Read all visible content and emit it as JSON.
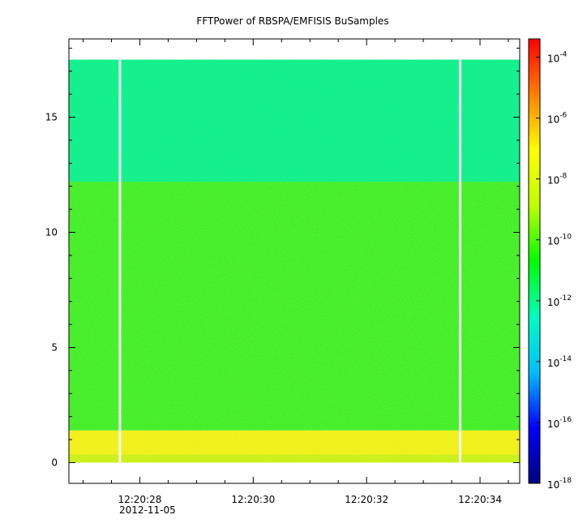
{
  "chart_data": {
    "type": "heatmap",
    "title": "FFTPower of RBSPA/EMFISIS  BuSamples",
    "date_label": "2012-11-05",
    "x_ticks": [
      {
        "value": 28,
        "label": "12:20:28"
      },
      {
        "value": 30,
        "label": "12:20:30"
      },
      {
        "value": 32,
        "label": "12:20:32"
      },
      {
        "value": 34,
        "label": "12:20:34"
      }
    ],
    "x_range": [
      26.75,
      34.7
    ],
    "x_unit_note": "seconds after 12:20:00",
    "y_ticks": [
      {
        "value": 0,
        "label": "0"
      },
      {
        "value": 5,
        "label": "5"
      },
      {
        "value": 10,
        "label": "10"
      },
      {
        "value": 15,
        "label": "15"
      }
    ],
    "y_range": [
      -0.9,
      18.4
    ],
    "data_y_range": [
      0,
      17.5
    ],
    "colorbar": {
      "scale": "log",
      "range_exponent": [
        -18,
        -3.4
      ],
      "ticks": [
        {
          "exponent": -4,
          "base": "10",
          "sup": "-4"
        },
        {
          "exponent": -6,
          "base": "10",
          "sup": "-6"
        },
        {
          "exponent": -8,
          "base": "10",
          "sup": "-8"
        },
        {
          "exponent": -10,
          "base": "10",
          "sup": "-10"
        },
        {
          "exponent": -12,
          "base": "10",
          "sup": "-12"
        },
        {
          "exponent": -14,
          "base": "10",
          "sup": "-14"
        },
        {
          "exponent": -16,
          "base": "10",
          "sup": "-16"
        },
        {
          "exponent": -18,
          "base": "10",
          "sup": "-18"
        }
      ],
      "colors": [
        "#00007f",
        "#0000ff",
        "#00bfff",
        "#00ffbf",
        "#00ff00",
        "#bfff00",
        "#ffff00",
        "#ff8000",
        "#ff0000"
      ]
    },
    "bands": [
      {
        "y_from": 0,
        "y_to": 0.35,
        "level": "yellow-green",
        "color": "#c8f020"
      },
      {
        "y_from": 0.35,
        "y_to": 1.4,
        "level": "yellow",
        "color": "#f0f020"
      },
      {
        "y_from": 1.4,
        "y_to": 12.2,
        "level": "green",
        "color": "#40ee30"
      },
      {
        "y_from": 12.2,
        "y_to": 17.5,
        "level": "cyan-green",
        "color": "#10f090"
      }
    ],
    "gaps_x": [
      27.65,
      33.65
    ],
    "grid": false
  }
}
